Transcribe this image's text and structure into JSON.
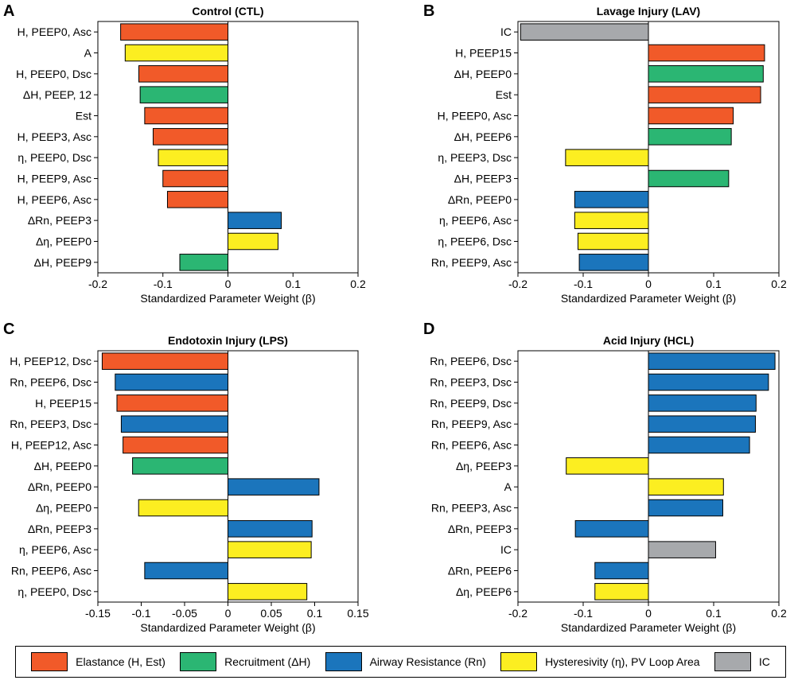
{
  "colors": {
    "H": "#f15a29",
    "R": "#2bb673",
    "Rn": "#1b75bc",
    "Eta": "#fcee21",
    "IC": "#a7a9ac"
  },
  "chart_data": [
    {
      "id": "A",
      "type": "bar",
      "orientation": "horizontal",
      "panel_label": "A",
      "title": "Control (CTL)",
      "xlabel": "Standardized Parameter Weight (β)",
      "xlim": [
        -0.2,
        0.2
      ],
      "xticks": [
        -0.2,
        -0.1,
        0,
        0.1,
        0.2
      ],
      "xtick_labels": [
        "-0.2",
        "-0.1",
        "0",
        "0.1",
        "0.2"
      ],
      "categories": [
        "H, PEEP0, Asc",
        "A",
        "H, PEEP0, Dsc",
        "ΔH, PEEP, 12",
        "Est",
        "H, PEEP3, Asc",
        "η, PEEP0, Dsc",
        "H, PEEP9, Asc",
        "H, PEEP6, Asc",
        "ΔRn, PEEP3",
        "Δη, PEEP0",
        "ΔH, PEEP9"
      ],
      "values": [
        -0.165,
        -0.158,
        -0.137,
        -0.135,
        -0.128,
        -0.115,
        -0.107,
        -0.1,
        -0.093,
        0.082,
        0.077,
        -0.074
      ],
      "groups": [
        "H",
        "Eta",
        "H",
        "R",
        "H",
        "H",
        "Eta",
        "H",
        "H",
        "Rn",
        "Eta",
        "R"
      ]
    },
    {
      "id": "B",
      "type": "bar",
      "orientation": "horizontal",
      "panel_label": "B",
      "title": "Lavage Injury (LAV)",
      "xlabel": "Standardized Parameter Weight (β)",
      "xlim": [
        -0.2,
        0.2
      ],
      "xticks": [
        -0.2,
        -0.1,
        0,
        0.1,
        0.2
      ],
      "xtick_labels": [
        "-0.2",
        "-0.1",
        "0",
        "0.1",
        "0.2"
      ],
      "categories": [
        "IC",
        "H, PEEP15",
        "ΔH, PEEP0",
        "Est",
        "H, PEEP0, Asc",
        "ΔH, PEEP6",
        "η, PEEP3, Dsc",
        "ΔH, PEEP3",
        "ΔRn, PEEP0",
        "η, PEEP6, Asc",
        "η, PEEP6, Dsc",
        "Rn, PEEP9, Asc"
      ],
      "values": [
        -0.196,
        0.178,
        0.176,
        0.172,
        0.13,
        0.127,
        -0.127,
        0.123,
        -0.113,
        -0.113,
        -0.108,
        -0.106
      ],
      "groups": [
        "IC",
        "H",
        "R",
        "H",
        "H",
        "R",
        "Eta",
        "R",
        "Rn",
        "Eta",
        "Eta",
        "Rn"
      ]
    },
    {
      "id": "C",
      "type": "bar",
      "orientation": "horizontal",
      "panel_label": "C",
      "title": "Endotoxin Injury (LPS)",
      "xlabel": "Standardized Parameter Weight (β)",
      "xlim": [
        -0.15,
        0.15
      ],
      "xticks": [
        -0.15,
        -0.1,
        -0.05,
        0,
        0.05,
        0.1,
        0.15
      ],
      "xtick_labels": [
        "-0.15",
        "-0.1",
        "-0.05",
        "0",
        "0.05",
        "0.1",
        "0.15"
      ],
      "categories": [
        "H, PEEP12, Dsc",
        "Rn, PEEP6, Dsc",
        "H, PEEP15",
        "Rn, PEEP3, Dsc",
        "H, PEEP12, Asc",
        "ΔH, PEEP0",
        "ΔRn, PEEP0",
        "Δη, PEEP0",
        "ΔRn, PEEP3",
        "η, PEEP6, Asc",
        "Rn, PEEP6, Asc",
        "η, PEEP0, Dsc"
      ],
      "values": [
        -0.145,
        -0.13,
        -0.128,
        -0.123,
        -0.121,
        -0.11,
        0.105,
        -0.103,
        0.097,
        0.096,
        -0.096,
        0.091
      ],
      "groups": [
        "H",
        "Rn",
        "H",
        "Rn",
        "H",
        "R",
        "Rn",
        "Eta",
        "Rn",
        "Eta",
        "Rn",
        "Eta"
      ]
    },
    {
      "id": "D",
      "type": "bar",
      "orientation": "horizontal",
      "panel_label": "D",
      "title": "Acid Injury (HCL)",
      "xlabel": "Standardized Parameter Weight (β)",
      "xlim": [
        -0.2,
        0.2
      ],
      "xticks": [
        -0.2,
        -0.1,
        0,
        0.1,
        0.2
      ],
      "xtick_labels": [
        "-0.2",
        "-0.1",
        "0",
        "0.1",
        "0.2"
      ],
      "categories": [
        "Rn, PEEP6, Dsc",
        "Rn, PEEP3, Dsc",
        "Rn, PEEP9, Dsc",
        "Rn, PEEP9, Asc",
        "Rn, PEEP6, Asc",
        "Δη, PEEP3",
        "A",
        "Rn, PEEP3, Asc",
        "ΔRn, PEEP3",
        "IC",
        "ΔRn, PEEP6",
        "Δη, PEEP6"
      ],
      "values": [
        0.194,
        0.184,
        0.165,
        0.164,
        0.155,
        -0.126,
        0.115,
        0.114,
        -0.112,
        0.103,
        -0.082,
        -0.082
      ],
      "groups": [
        "Rn",
        "Rn",
        "Rn",
        "Rn",
        "Rn",
        "Eta",
        "Eta",
        "Rn",
        "Rn",
        "IC",
        "Rn",
        "Eta"
      ]
    }
  ],
  "legend": [
    {
      "key": "H",
      "label": "Elastance (H, Est)"
    },
    {
      "key": "R",
      "label": "Recruitment (ΔH)"
    },
    {
      "key": "Rn",
      "label": "Airway Resistance (Rn)"
    },
    {
      "key": "Eta",
      "label": "Hysteresivity (η), PV Loop Area"
    },
    {
      "key": "IC",
      "label": "IC"
    }
  ]
}
